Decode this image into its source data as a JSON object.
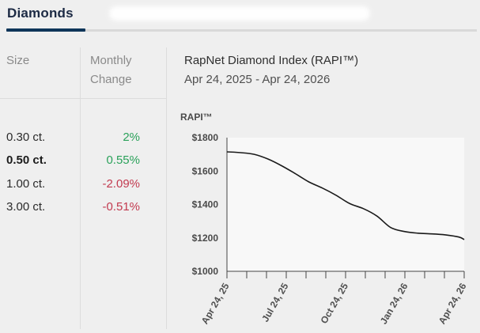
{
  "tabs": {
    "active_label": "Diamonds"
  },
  "table": {
    "col_size": "Size",
    "col_change_line1": "Monthly",
    "col_change_line2": "Change",
    "rows": [
      {
        "size": "0.30 ct.",
        "change": "2%",
        "trend": "up",
        "selected": false
      },
      {
        "size": "0.50 ct.",
        "change": "0.55%",
        "trend": "up",
        "selected": true
      },
      {
        "size": "1.00 ct.",
        "change": "-2.09%",
        "trend": "down",
        "selected": false
      },
      {
        "size": "3.00 ct.",
        "change": "-0.51%",
        "trend": "down",
        "selected": false
      }
    ]
  },
  "colors": {
    "up": "#2aa15a",
    "down": "#c23a4f",
    "accent": "#0e3559",
    "line": "#1a1a1a"
  },
  "chart_data": {
    "type": "line",
    "title": "RapNet Diamond Index (RAPI™)",
    "subtitle": "Apr 24, 2025 - Apr 24, 2026",
    "ylabel": "RAPI™",
    "yticks": [
      "$1800",
      "$1600",
      "$1400",
      "$1200",
      "$1000"
    ],
    "xticks": [
      "Apr 24, 25",
      "Jul 24, 25",
      "Oct 24, 25",
      "Jan 24, 26",
      "Apr 24, 26"
    ],
    "ylim": [
      1000,
      1800
    ],
    "xlim": [
      "2025-04-24",
      "2026-04-24"
    ],
    "grid": false,
    "series": [
      {
        "x": [
          "2025-04-24",
          "2025-05-15",
          "2025-06-05",
          "2025-06-26",
          "2025-07-17",
          "2025-08-07",
          "2025-08-28",
          "2025-09-18",
          "2025-10-09",
          "2025-10-30",
          "2025-11-20",
          "2025-12-11",
          "2026-01-01",
          "2026-01-22",
          "2026-02-12",
          "2026-03-05",
          "2026-03-26",
          "2026-04-16",
          "2026-04-24"
        ],
        "values": [
          1715,
          1710,
          1700,
          1672,
          1632,
          1585,
          1535,
          1498,
          1455,
          1405,
          1375,
          1330,
          1262,
          1238,
          1228,
          1224,
          1218,
          1205,
          1190
        ]
      }
    ]
  }
}
